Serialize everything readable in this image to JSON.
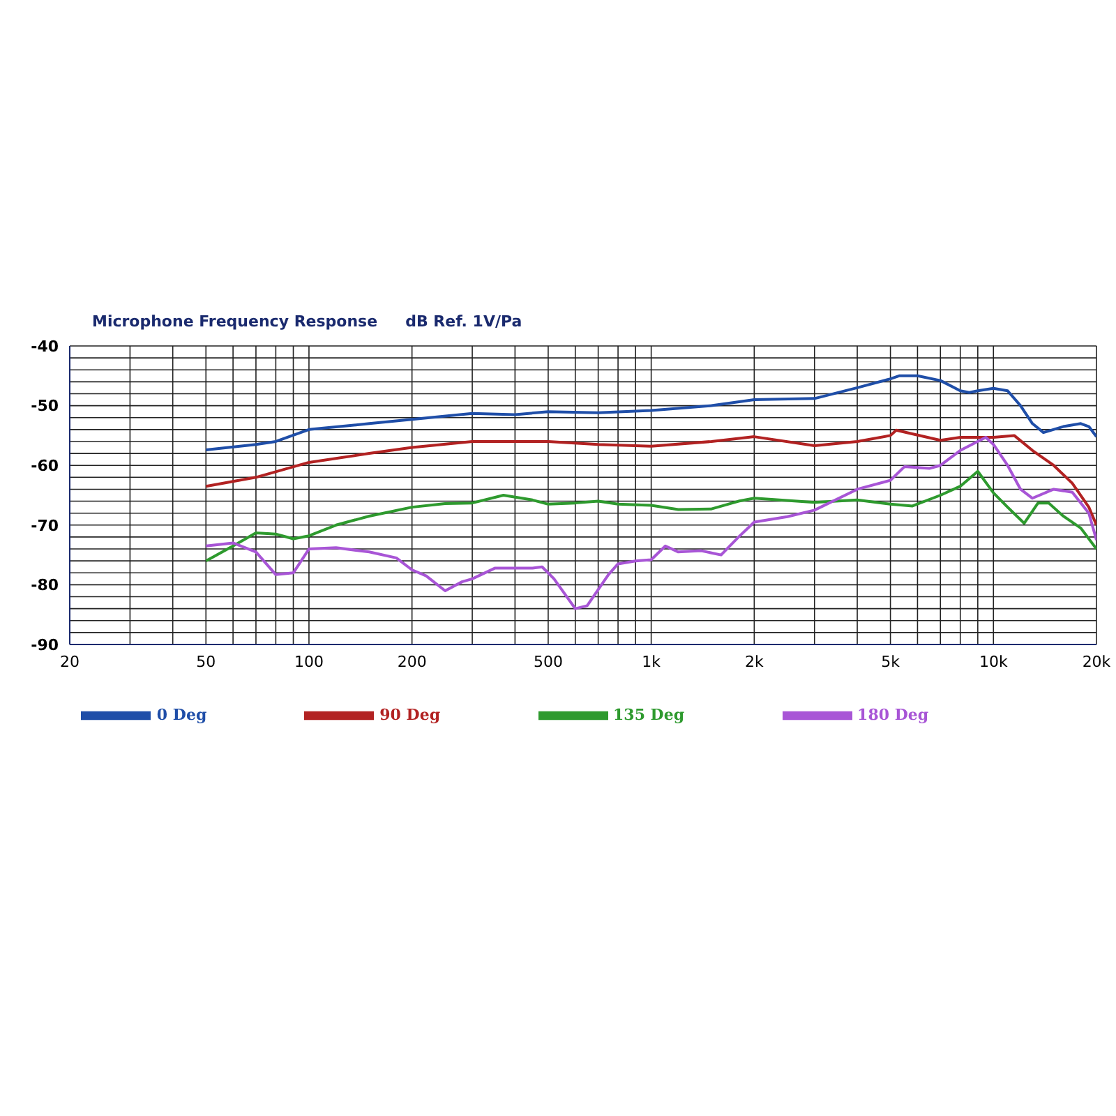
{
  "chart_data": {
    "type": "line",
    "title": "Microphone Frequency Response",
    "subtitle": "dB Ref. 1V/Pa",
    "log": "x",
    "grid": true,
    "legend": "bottom",
    "marker": "none",
    "line_style": "solid",
    "xlim": [
      20,
      20000
    ],
    "ylim": [
      -90,
      -40
    ],
    "xticks": [
      20,
      {
        "value": 30,
        "label": null
      },
      {
        "value": 40,
        "label": null
      },
      50,
      {
        "value": 60,
        "label": null
      },
      {
        "value": 70,
        "label": null
      },
      {
        "value": 80,
        "label": null
      },
      {
        "value": 90,
        "label": null
      },
      100,
      200,
      {
        "value": 300,
        "label": null
      },
      {
        "value": 400,
        "label": null
      },
      500,
      {
        "value": 600,
        "label": null
      },
      {
        "value": 700,
        "label": null
      },
      {
        "value": 800,
        "label": null
      },
      {
        "value": 900,
        "label": null
      },
      {
        "value": 1000,
        "label": "1k"
      },
      {
        "value": 2000,
        "label": "2k"
      },
      {
        "value": 3000,
        "label": null
      },
      {
        "value": 4000,
        "label": null
      },
      {
        "value": 5000,
        "label": "5k"
      },
      {
        "value": 6000,
        "label": null
      },
      {
        "value": 7000,
        "label": null
      },
      {
        "value": 8000,
        "label": null
      },
      {
        "value": 9000,
        "label": null
      },
      {
        "value": 10000,
        "label": "10k"
      },
      {
        "value": 20000,
        "label": "20k"
      }
    ],
    "yticks": [
      -90,
      {
        "value": -88,
        "label": null
      },
      {
        "value": -86,
        "label": null
      },
      {
        "value": -84,
        "label": null
      },
      {
        "value": -82,
        "label": null
      },
      -80,
      {
        "value": -78,
        "label": null
      },
      {
        "value": -76,
        "label": null
      },
      {
        "value": -74,
        "label": null
      },
      {
        "value": -72,
        "label": null
      },
      -70,
      {
        "value": -68,
        "label": null
      },
      {
        "value": -66,
        "label": null
      },
      {
        "value": -64,
        "label": null
      },
      {
        "value": -62,
        "label": null
      },
      -60,
      {
        "value": -58,
        "label": null
      },
      {
        "value": -56,
        "label": null
      },
      {
        "value": -54,
        "label": null
      },
      {
        "value": -52,
        "label": null
      },
      -50,
      {
        "value": -48,
        "label": null
      },
      {
        "value": -46,
        "label": null
      },
      {
        "value": -44,
        "label": null
      },
      {
        "value": -42,
        "label": null
      },
      -40
    ],
    "series": [
      {
        "name": "0 Deg",
        "color": "#1f4ea8",
        "x": [
          50,
          70,
          80,
          100,
          150,
          200,
          300,
          400,
          500,
          700,
          1000,
          1500,
          2000,
          3000,
          4000,
          5000,
          5300,
          6000,
          7000,
          8000,
          8500,
          9000,
          10000,
          11000,
          12000,
          13000,
          14000,
          16000,
          18000,
          19000,
          20000
        ],
        "values": [
          -57.4,
          -56.5,
          -56,
          -54,
          -53,
          -52.3,
          -51.3,
          -51.5,
          -51,
          -51.2,
          -50.8,
          -50,
          -49,
          -48.8,
          -47,
          -45.5,
          -45,
          -45,
          -45.8,
          -47.5,
          -47.8,
          -47.5,
          -47.1,
          -47.5,
          -50,
          -53,
          -54.5,
          -53.5,
          -53,
          -53.5,
          -55.2
        ]
      },
      {
        "name": "90 Deg",
        "color": "#b22222",
        "x": [
          50,
          70,
          100,
          150,
          200,
          300,
          500,
          700,
          1000,
          1500,
          2000,
          3000,
          4000,
          5000,
          5200,
          7000,
          8000,
          10000,
          11500,
          13000,
          15000,
          17000,
          19000,
          20000
        ],
        "values": [
          -63.5,
          -62,
          -59.5,
          -58,
          -57,
          -56,
          -56,
          -56.5,
          -56.8,
          -56,
          -55.2,
          -56.7,
          -56,
          -55,
          -54.1,
          -55.8,
          -55.3,
          -55.3,
          -55,
          -57.5,
          -60,
          -63,
          -67,
          -70
        ]
      },
      {
        "name": "135 Deg",
        "color": "#2e9a2e",
        "x": [
          50,
          60,
          70,
          80,
          90,
          100,
          120,
          150,
          200,
          250,
          300,
          370,
          450,
          500,
          600,
          700,
          800,
          1000,
          1200,
          1500,
          1800,
          2000,
          3000,
          4000,
          5000,
          5800,
          7000,
          8000,
          9000,
          10000,
          11000,
          12300,
          13500,
          14500,
          16000,
          18000,
          20000
        ],
        "values": [
          -76,
          -73.5,
          -71.3,
          -71.5,
          -72.3,
          -71.8,
          -70,
          -68.5,
          -67,
          -66.4,
          -66.3,
          -65,
          -65.8,
          -66.5,
          -66.3,
          -66,
          -66.5,
          -66.7,
          -67.4,
          -67.3,
          -66,
          -65.5,
          -66.2,
          -65.8,
          -66.5,
          -66.8,
          -65,
          -63.5,
          -61,
          -64.6,
          -67,
          -69.7,
          -66.3,
          -66.3,
          -68.5,
          -70.5,
          -74
        ]
      },
      {
        "name": "180 Deg",
        "color": "#a855d6",
        "x": [
          50,
          60,
          70,
          80,
          90,
          100,
          120,
          150,
          180,
          200,
          220,
          250,
          280,
          300,
          350,
          450,
          480,
          520,
          600,
          650,
          750,
          800,
          900,
          1000,
          1100,
          1200,
          1400,
          1600,
          1800,
          2000,
          2500,
          3000,
          4000,
          5000,
          5500,
          6500,
          7000,
          8000,
          9500,
          10000,
          11000,
          12000,
          13000,
          15000,
          17000,
          19000,
          20000
        ],
        "values": [
          -73.5,
          -73,
          -74.5,
          -78.3,
          -78,
          -74,
          -73.8,
          -74.5,
          -75.5,
          -77.5,
          -78.5,
          -81,
          -79.5,
          -79,
          -77.2,
          -77.2,
          -77,
          -79,
          -84,
          -83.5,
          -78.3,
          -76.5,
          -76,
          -75.8,
          -73.5,
          -74.5,
          -74.3,
          -75,
          -72,
          -69.5,
          -68.6,
          -67.5,
          -64,
          -62.5,
          -60.2,
          -60.5,
          -60,
          -57.5,
          -55.3,
          -56.5,
          -60,
          -64,
          -65.5,
          -64,
          -64.5,
          -68,
          -72.5
        ]
      }
    ]
  }
}
